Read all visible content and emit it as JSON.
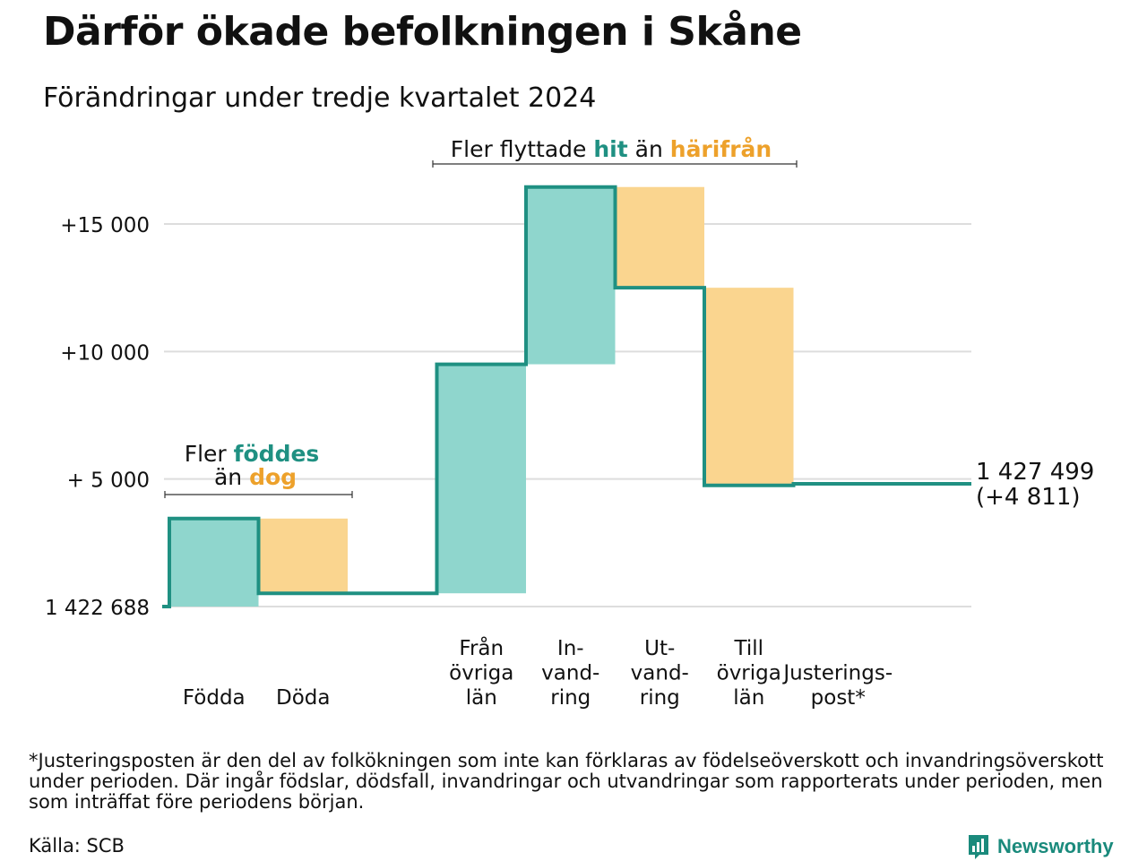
{
  "title": "Därför ökade befolkningen i Skåne",
  "subtitle": "Förändringar under tredje kvartalet 2024",
  "chart_data": {
    "type": "waterfall",
    "base": 1422688,
    "base_label": "1 422 688",
    "yticks": [
      {
        "value": 5000,
        "label": "+ 5 000"
      },
      {
        "value": 10000,
        "label": "+10 000"
      },
      {
        "value": 15000,
        "label": "+15 000"
      }
    ],
    "ylim": [
      0,
      16500
    ],
    "steps": [
      {
        "name": "Födda",
        "label_lines": [
          "Födda"
        ],
        "kind": "plus",
        "start": 0,
        "end": 3450
      },
      {
        "name": "Döda",
        "label_lines": [
          "Döda"
        ],
        "kind": "minus",
        "start": 3450,
        "end": 520
      },
      {
        "name": "",
        "label_lines": [],
        "kind": "none",
        "start": 520,
        "end": 520
      },
      {
        "name": "Från övriga län",
        "label_lines": [
          "Från",
          "övriga",
          "län"
        ],
        "kind": "plus",
        "start": 520,
        "end": 9500
      },
      {
        "name": "In-vand-ring",
        "label_lines": [
          "In-",
          "vand-",
          "ring"
        ],
        "kind": "plus",
        "start": 9500,
        "end": 16450
      },
      {
        "name": "Ut-vand-ring",
        "label_lines": [
          "Ut-",
          "vand-",
          "ring"
        ],
        "kind": "minus",
        "start": 16450,
        "end": 12500
      },
      {
        "name": "Till övriga län",
        "label_lines": [
          "Till",
          "övriga",
          "län"
        ],
        "kind": "minus",
        "start": 12500,
        "end": 4750
      },
      {
        "name": "Justerings-post*",
        "label_lines": [
          "Justerings-",
          "post*"
        ],
        "kind": "none",
        "start": 4750,
        "end": 4811
      }
    ],
    "end_label": [
      "1 427 499",
      "(+4 811)"
    ],
    "annotations": [
      {
        "id": "births",
        "line1": [
          "Fler ",
          "föddes"
        ],
        "line2": [
          "än ",
          "dog"
        ]
      },
      {
        "id": "migration",
        "parts": [
          "Fler flyttade ",
          "hit",
          " än ",
          "härifrån"
        ]
      }
    ],
    "colors": {
      "line": "#1f9082",
      "plus": "#8fd6cd",
      "minus": "#fad58f",
      "accent_plus": "#1f9082",
      "accent_minus": "#eda12b",
      "grid": "#dddddd"
    }
  },
  "footnote": "*Justeringsposten är den del av folkökningen som inte kan förklaras av födelseöverskott och invandringsöverskott under perioden. Där ingår födslar, dödsfall, invandringar och utvandringar som rapporterats under perioden, men som inträffat före periodens början.",
  "source": "Källa: SCB",
  "brand": {
    "name": "Newsworthy",
    "icon": "newsworthy-logo-icon"
  }
}
